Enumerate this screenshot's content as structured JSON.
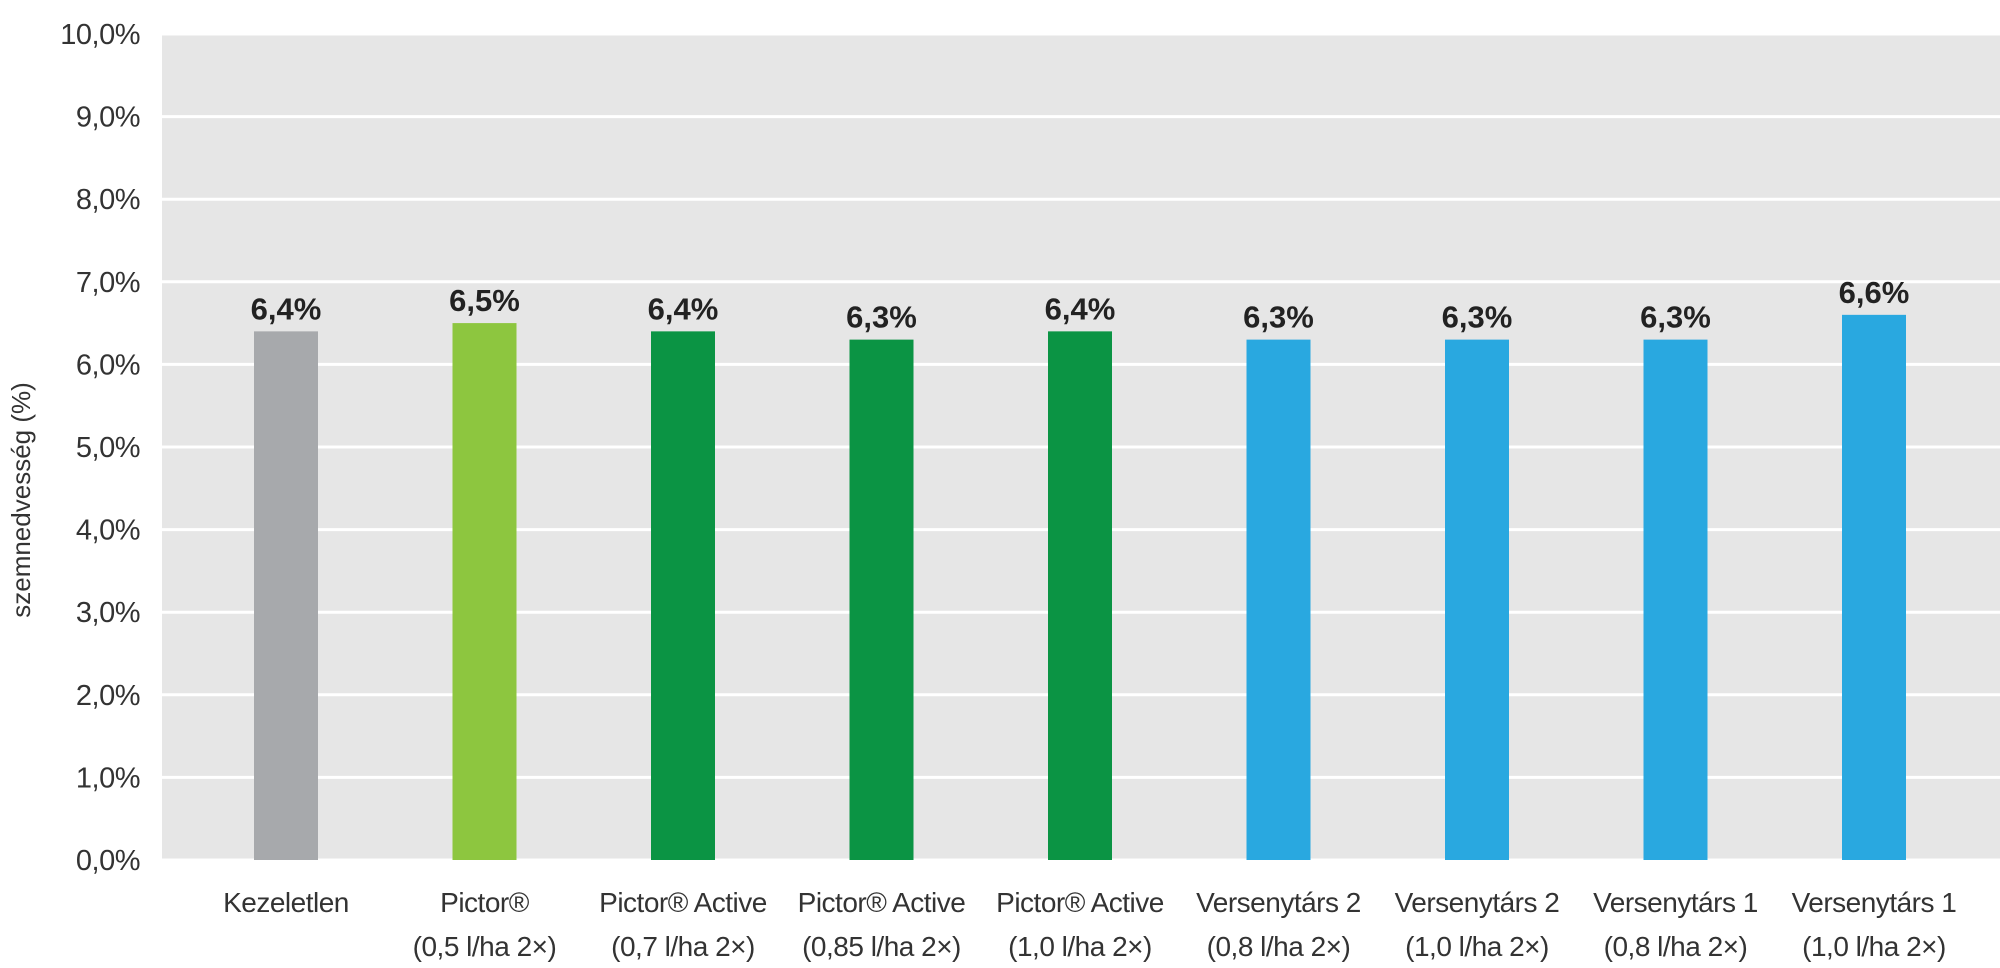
{
  "chart_data": {
    "type": "bar",
    "ylabel": "szemnedvesség (%)",
    "ylim": [
      0,
      10
    ],
    "grid": true,
    "legend": "none",
    "y_ticks": [
      "0,0%",
      "1,0%",
      "2,0%",
      "3,0%",
      "4,0%",
      "5,0%",
      "6,0%",
      "7,0%",
      "8,0%",
      "9,0%",
      "10,0%"
    ],
    "categories": [
      [
        "Kezeletlen"
      ],
      [
        "Pictor®",
        "(0,5 l/ha 2×)"
      ],
      [
        "Pictor® Active",
        "(0,7 l/ha 2×)"
      ],
      [
        "Pictor® Active",
        "(0,85 l/ha 2×)"
      ],
      [
        "Pictor® Active",
        "(1,0 l/ha 2×)"
      ],
      [
        "Versenytárs 2",
        "(0,8 l/ha 2×)"
      ],
      [
        "Versenytárs 2",
        "(1,0 l/ha 2×)"
      ],
      [
        "Versenytárs 1",
        "(0,8 l/ha 2×)"
      ],
      [
        "Versenytárs 1",
        "(1,0 l/ha 2×)"
      ]
    ],
    "values": [
      6.4,
      6.5,
      6.4,
      6.3,
      6.4,
      6.3,
      6.3,
      6.3,
      6.6
    ],
    "data_labels": [
      "6,4%",
      "6,5%",
      "6,4%",
      "6,3%",
      "6,4%",
      "6,3%",
      "6,3%",
      "6,3%",
      "6,6%"
    ],
    "bar_colors": [
      "#a7a9ac",
      "#8dc63f",
      "#0b9444",
      "#0b9444",
      "#0b9444",
      "#29a8e0",
      "#29a8e0",
      "#29a8e0",
      "#29a8e0"
    ],
    "plot_background": "#e6e6e6",
    "gridline_color": "#ffffff"
  }
}
